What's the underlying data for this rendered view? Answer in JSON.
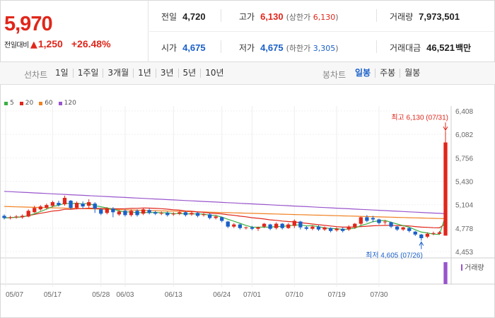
{
  "price": {
    "current": "5,970",
    "diff_label": "전일대비",
    "diff_arrow": "▲",
    "diff_value": "1,250",
    "diff_rate": "+26.48%"
  },
  "stats": {
    "prev_close": {
      "label": "전일",
      "value": "4,720"
    },
    "open": {
      "label": "시가",
      "value": "4,675"
    },
    "high": {
      "label": "고가",
      "value": "6,130",
      "sub_prefix": "(상한가 ",
      "sub_value": "6,130",
      "sub_suffix": ")"
    },
    "low": {
      "label": "저가",
      "value": "4,675",
      "sub_prefix": "(하한가 ",
      "sub_value": "3,305",
      "sub_suffix": ")"
    },
    "volume": {
      "label": "거래량",
      "value": "7,973,501"
    },
    "amount": {
      "label": "거래대금",
      "value": "46,521",
      "unit": "백만"
    }
  },
  "toolbar": {
    "line_label": "선차트",
    "line_periods": [
      "1일",
      "1주일",
      "3개월",
      "1년",
      "3년",
      "5년",
      "10년"
    ],
    "candle_label": "봉차트",
    "candle_periods": [
      "일봉",
      "주봉",
      "월봉"
    ],
    "active_candle": "일봉"
  },
  "colors": {
    "up": "#e0261b",
    "down": "#1a5fc9",
    "ma5": "#3cb043",
    "ma20": "#e0261b",
    "ma60": "#f08020",
    "ma120": "#9955cc"
  },
  "chart_data": {
    "type": "candlestick",
    "legend": [
      "5",
      "20",
      "60",
      "120"
    ],
    "y_ticks": [
      "6,408",
      "6,082",
      "5,756",
      "5,430",
      "5,104",
      "4,778",
      "4,453"
    ],
    "ylim": [
      4453,
      6408
    ],
    "x_ticks": [
      "05/07",
      "05/17",
      "05/28",
      "06/03",
      "06/13",
      "06/24",
      "07/01",
      "07/10",
      "07/19",
      "07/30"
    ],
    "high_annotation": "최고 6,130 (07/31)",
    "low_annotation": "최저 4,605 (07/26)",
    "volume_label": "거래량",
    "candles": [
      {
        "o": 4950,
        "c": 4920,
        "h": 4970,
        "l": 4900
      },
      {
        "o": 4920,
        "c": 4930,
        "h": 4950,
        "l": 4900
      },
      {
        "o": 4930,
        "c": 4940,
        "h": 4960,
        "l": 4910
      },
      {
        "o": 4930,
        "c": 4950,
        "h": 4970,
        "l": 4910
      },
      {
        "o": 4940,
        "c": 5020,
        "h": 5040,
        "l": 4930
      },
      {
        "o": 5000,
        "c": 5060,
        "h": 5090,
        "l": 4990
      },
      {
        "o": 5040,
        "c": 5080,
        "h": 5100,
        "l": 5020
      },
      {
        "o": 5060,
        "c": 5100,
        "h": 5120,
        "l": 5040
      },
      {
        "o": 5090,
        "c": 5140,
        "h": 5160,
        "l": 5070
      },
      {
        "o": 5130,
        "c": 5100,
        "h": 5160,
        "l": 5080
      },
      {
        "o": 5110,
        "c": 5200,
        "h": 5230,
        "l": 5090
      },
      {
        "o": 5160,
        "c": 5060,
        "h": 5170,
        "l": 5040
      },
      {
        "o": 5060,
        "c": 5130,
        "h": 5150,
        "l": 5040
      },
      {
        "o": 5120,
        "c": 5080,
        "h": 5150,
        "l": 5050
      },
      {
        "o": 5090,
        "c": 5140,
        "h": 5180,
        "l": 5060
      },
      {
        "o": 5120,
        "c": 5050,
        "h": 5140,
        "l": 4990
      },
      {
        "o": 5040,
        "c": 4980,
        "h": 5060,
        "l": 4960
      },
      {
        "o": 4990,
        "c": 5050,
        "h": 5070,
        "l": 4970
      },
      {
        "o": 5050,
        "c": 5000,
        "h": 5070,
        "l": 4930
      },
      {
        "o": 4970,
        "c": 5010,
        "h": 5030,
        "l": 4950
      },
      {
        "o": 5020,
        "c": 4960,
        "h": 5040,
        "l": 4940
      },
      {
        "o": 4960,
        "c": 5020,
        "h": 5040,
        "l": 4940
      },
      {
        "o": 5020,
        "c": 4960,
        "h": 5040,
        "l": 4940
      },
      {
        "o": 4980,
        "c": 5040,
        "h": 5060,
        "l": 4960
      },
      {
        "o": 5030,
        "c": 4990,
        "h": 5050,
        "l": 4970
      },
      {
        "o": 5000,
        "c": 4980,
        "h": 5020,
        "l": 4960
      },
      {
        "o": 4980,
        "c": 4990,
        "h": 5010,
        "l": 4960
      },
      {
        "o": 4990,
        "c": 4960,
        "h": 5010,
        "l": 4940
      },
      {
        "o": 4970,
        "c": 4980,
        "h": 5000,
        "l": 4950
      },
      {
        "o": 4980,
        "c": 5000,
        "h": 5020,
        "l": 4960
      },
      {
        "o": 5000,
        "c": 4960,
        "h": 5010,
        "l": 4940
      },
      {
        "o": 4970,
        "c": 4990,
        "h": 5010,
        "l": 4950
      },
      {
        "o": 4990,
        "c": 4950,
        "h": 5000,
        "l": 4930
      },
      {
        "o": 4960,
        "c": 4970,
        "h": 4990,
        "l": 4940
      },
      {
        "o": 4970,
        "c": 4920,
        "h": 4990,
        "l": 4900
      },
      {
        "o": 4920,
        "c": 4940,
        "h": 4960,
        "l": 4900
      },
      {
        "o": 4930,
        "c": 4880,
        "h": 4940,
        "l": 4860
      },
      {
        "o": 4870,
        "c": 4800,
        "h": 4880,
        "l": 4780
      },
      {
        "o": 4800,
        "c": 4830,
        "h": 4850,
        "l": 4780
      },
      {
        "o": 4830,
        "c": 4780,
        "h": 4840,
        "l": 4760
      },
      {
        "o": 4780,
        "c": 4790,
        "h": 4800,
        "l": 4760
      },
      {
        "o": 4790,
        "c": 4770,
        "h": 4810,
        "l": 4750
      },
      {
        "o": 4770,
        "c": 4790,
        "h": 4800,
        "l": 4740
      },
      {
        "o": 4800,
        "c": 4840,
        "h": 4850,
        "l": 4780
      },
      {
        "o": 4830,
        "c": 4770,
        "h": 4840,
        "l": 4750
      },
      {
        "o": 4780,
        "c": 4840,
        "h": 4860,
        "l": 4760
      },
      {
        "o": 4840,
        "c": 4780,
        "h": 4850,
        "l": 4760
      },
      {
        "o": 4780,
        "c": 4830,
        "h": 4850,
        "l": 4770
      },
      {
        "o": 4810,
        "c": 4880,
        "h": 4900,
        "l": 4780
      },
      {
        "o": 4870,
        "c": 4790,
        "h": 4880,
        "l": 4760
      },
      {
        "o": 4790,
        "c": 4770,
        "h": 4810,
        "l": 4750
      },
      {
        "o": 4770,
        "c": 4800,
        "h": 4820,
        "l": 4750
      },
      {
        "o": 4800,
        "c": 4760,
        "h": 4820,
        "l": 4740
      },
      {
        "o": 4760,
        "c": 4790,
        "h": 4800,
        "l": 4740
      },
      {
        "o": 4780,
        "c": 4740,
        "h": 4790,
        "l": 4720
      },
      {
        "o": 4750,
        "c": 4770,
        "h": 4790,
        "l": 4730
      },
      {
        "o": 4770,
        "c": 4740,
        "h": 4790,
        "l": 4720
      },
      {
        "o": 4760,
        "c": 4800,
        "h": 4820,
        "l": 4740
      },
      {
        "o": 4790,
        "c": 4840,
        "h": 4850,
        "l": 4770
      },
      {
        "o": 4840,
        "c": 4930,
        "h": 4940,
        "l": 4820
      },
      {
        "o": 4930,
        "c": 4880,
        "h": 4960,
        "l": 4860
      },
      {
        "o": 4920,
        "c": 4900,
        "h": 4950,
        "l": 4860
      },
      {
        "o": 4900,
        "c": 4850,
        "h": 4910,
        "l": 4830
      },
      {
        "o": 4860,
        "c": 4870,
        "h": 4890,
        "l": 4830
      },
      {
        "o": 4860,
        "c": 4800,
        "h": 4870,
        "l": 4780
      },
      {
        "o": 4800,
        "c": 4760,
        "h": 4810,
        "l": 4740
      },
      {
        "o": 4760,
        "c": 4790,
        "h": 4800,
        "l": 4740
      },
      {
        "o": 4780,
        "c": 4740,
        "h": 4790,
        "l": 4720
      },
      {
        "o": 4730,
        "c": 4690,
        "h": 4740,
        "l": 4670
      },
      {
        "o": 4690,
        "c": 4640,
        "h": 4700,
        "l": 4605
      },
      {
        "o": 4660,
        "c": 4700,
        "h": 4720,
        "l": 4640
      },
      {
        "o": 4700,
        "c": 4710,
        "h": 4730,
        "l": 4680
      },
      {
        "o": 4700,
        "c": 4720,
        "h": 4740,
        "l": 4690
      },
      {
        "o": 4675,
        "c": 5970,
        "h": 6130,
        "l": 4675
      }
    ]
  }
}
